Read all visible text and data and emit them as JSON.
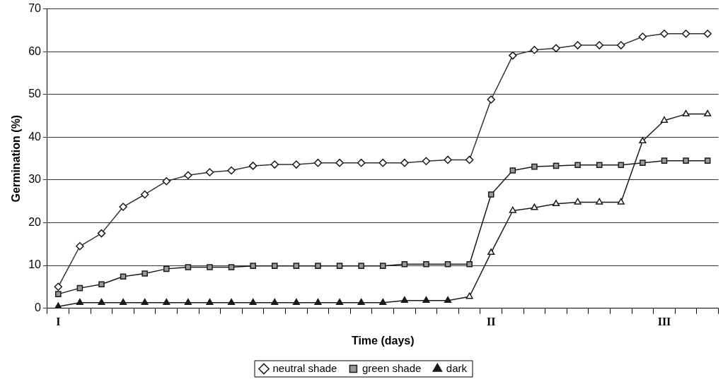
{
  "chart_data": {
    "type": "line",
    "xlabel": "Time (days)",
    "ylabel": "Germination (%)",
    "categories": [
      "I",
      null,
      null,
      null,
      null,
      null,
      null,
      null,
      null,
      null,
      null,
      null,
      null,
      null,
      null,
      null,
      null,
      null,
      null,
      null,
      "II",
      null,
      null,
      null,
      null,
      null,
      null,
      null,
      "III",
      null,
      null
    ],
    "series": [
      {
        "name": "neutral shade",
        "color": "#333333",
        "marker": "diamond",
        "colors": [
          "#ffffff",
          "#ffffff",
          "#ffffff",
          "#ffffff",
          "#ffffff",
          "#ffffff",
          "#ffffff",
          "#ffffff",
          "#ffffff",
          "#ffffff",
          "#ffffff",
          "#ffffff",
          "#ffffff",
          "#ffffff",
          "#ffffff",
          "#ffffff",
          "#ffffff",
          "#ffffff",
          "#ffffff",
          "#ffffff",
          "#ffffff",
          "#ffffff",
          "#ffffff",
          "#ffffff",
          "#ffffff",
          "#ffffff",
          "#ffffff",
          "#ffffff",
          "#ffffff",
          "#ffffff",
          "#ffffff"
        ],
        "values": [
          5.0,
          14.5,
          17.5,
          23.7,
          26.6,
          29.7,
          31.1,
          31.8,
          32.2,
          33.3,
          33.6,
          33.6,
          34.0,
          34.0,
          34.0,
          34.0,
          34.0,
          34.4,
          34.7,
          34.7,
          48.8,
          59.1,
          60.4,
          60.8,
          61.5,
          61.5,
          61.5,
          63.5,
          64.2,
          64.2,
          64.2
        ]
      },
      {
        "name": "green shade",
        "color": "#1a1a1a",
        "marker": "square",
        "colors": [
          "#999999",
          "#999999",
          "#999999",
          "#999999",
          "#999999",
          "#999999",
          "#999999",
          "#999999",
          "#999999",
          "#999999",
          "#999999",
          "#999999",
          "#999999",
          "#999999",
          "#999999",
          "#999999",
          "#999999",
          "#999999",
          "#999999",
          "#999999",
          "#999999",
          "#999999",
          "#999999",
          "#999999",
          "#999999",
          "#999999",
          "#999999",
          "#999999",
          "#999999",
          "#999999",
          "#999999"
        ],
        "values": [
          3.3,
          4.7,
          5.6,
          7.4,
          8.1,
          9.2,
          9.6,
          9.6,
          9.6,
          9.9,
          9.9,
          9.9,
          9.9,
          9.9,
          9.9,
          9.9,
          10.3,
          10.3,
          10.3,
          10.3,
          26.6,
          32.2,
          33.1,
          33.3,
          33.5,
          33.5,
          33.5,
          34.0,
          34.5,
          34.5,
          34.5
        ]
      },
      {
        "name": "dark",
        "color": "#1a1a1a",
        "marker": "triangle",
        "colors": [
          "#1a1a1a",
          "#1a1a1a",
          "#1a1a1a",
          "#1a1a1a",
          "#1a1a1a",
          "#1a1a1a",
          "#1a1a1a",
          "#1a1a1a",
          "#1a1a1a",
          "#1a1a1a",
          "#1a1a1a",
          "#1a1a1a",
          "#1a1a1a",
          "#1a1a1a",
          "#1a1a1a",
          "#1a1a1a",
          "#1a1a1a",
          "#1a1a1a",
          "#1a1a1a",
          "#ffffff",
          "#ffffff",
          "#ffffff",
          "#ffffff",
          "#ffffff",
          "#ffffff",
          "#ffffff",
          "#ffffff",
          "#ffffff",
          "#ffffff",
          "#ffffff",
          "#ffffff"
        ],
        "values": [
          0.4,
          1.3,
          1.3,
          1.3,
          1.3,
          1.3,
          1.3,
          1.3,
          1.3,
          1.3,
          1.3,
          1.3,
          1.3,
          1.3,
          1.3,
          1.3,
          1.8,
          1.8,
          1.8,
          2.7,
          13.0,
          22.8,
          23.5,
          24.4,
          24.8,
          24.8,
          24.8,
          39.1,
          43.9,
          45.4,
          45.4
        ]
      }
    ],
    "ylim": [
      0,
      70
    ],
    "yticks": [
      0,
      10,
      20,
      30,
      40,
      50,
      60,
      70
    ],
    "grid": "y",
    "legend": "bottom"
  }
}
